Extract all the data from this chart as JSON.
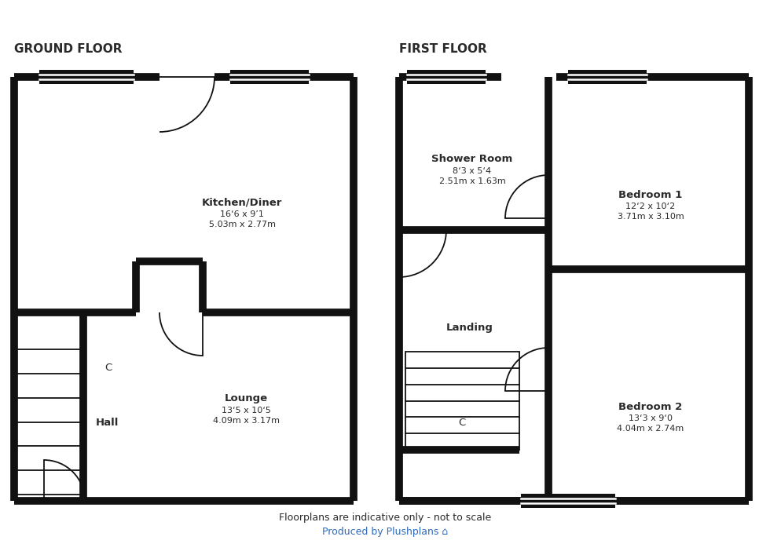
{
  "bg_color": "#ffffff",
  "wall_color": "#111111",
  "wall_lw": 7,
  "thin_lw": 1.3,
  "text_dark": "#2a2a2a",
  "text_blue": "#2e6abf",
  "title_left": "GROUND FLOOR",
  "title_right": "FIRST FLOOR",
  "footer1": "Floorplans are indicative only - not to scale",
  "footer2": "Produced by Plushplans ⌂",
  "label_kitchen": "Kitchen/Diner",
  "dim1_kitchen": "16‘6 x 9’1",
  "dim2_kitchen": "5.03m x 2.77m",
  "label_lounge": "Lounge",
  "dim1_lounge": "13‘5 x 10‘5",
  "dim2_lounge": "4.09m x 3.17m",
  "label_hall": "Hall",
  "label_shower": "Shower Room",
  "dim1_shower": "8‘3 x 5‘4",
  "dim2_shower": "2.51m x 1.63m",
  "label_landing": "Landing",
  "label_bed1": "Bedroom 1",
  "dim1_bed1": "12‘2 x 10‘2",
  "dim2_bed1": "3.71m x 3.10m",
  "label_bed2": "Bedroom 2",
  "dim1_bed2": "13‘3 x 9‘0",
  "dim2_bed2": "4.04m x 2.74m",
  "C_label": "C"
}
